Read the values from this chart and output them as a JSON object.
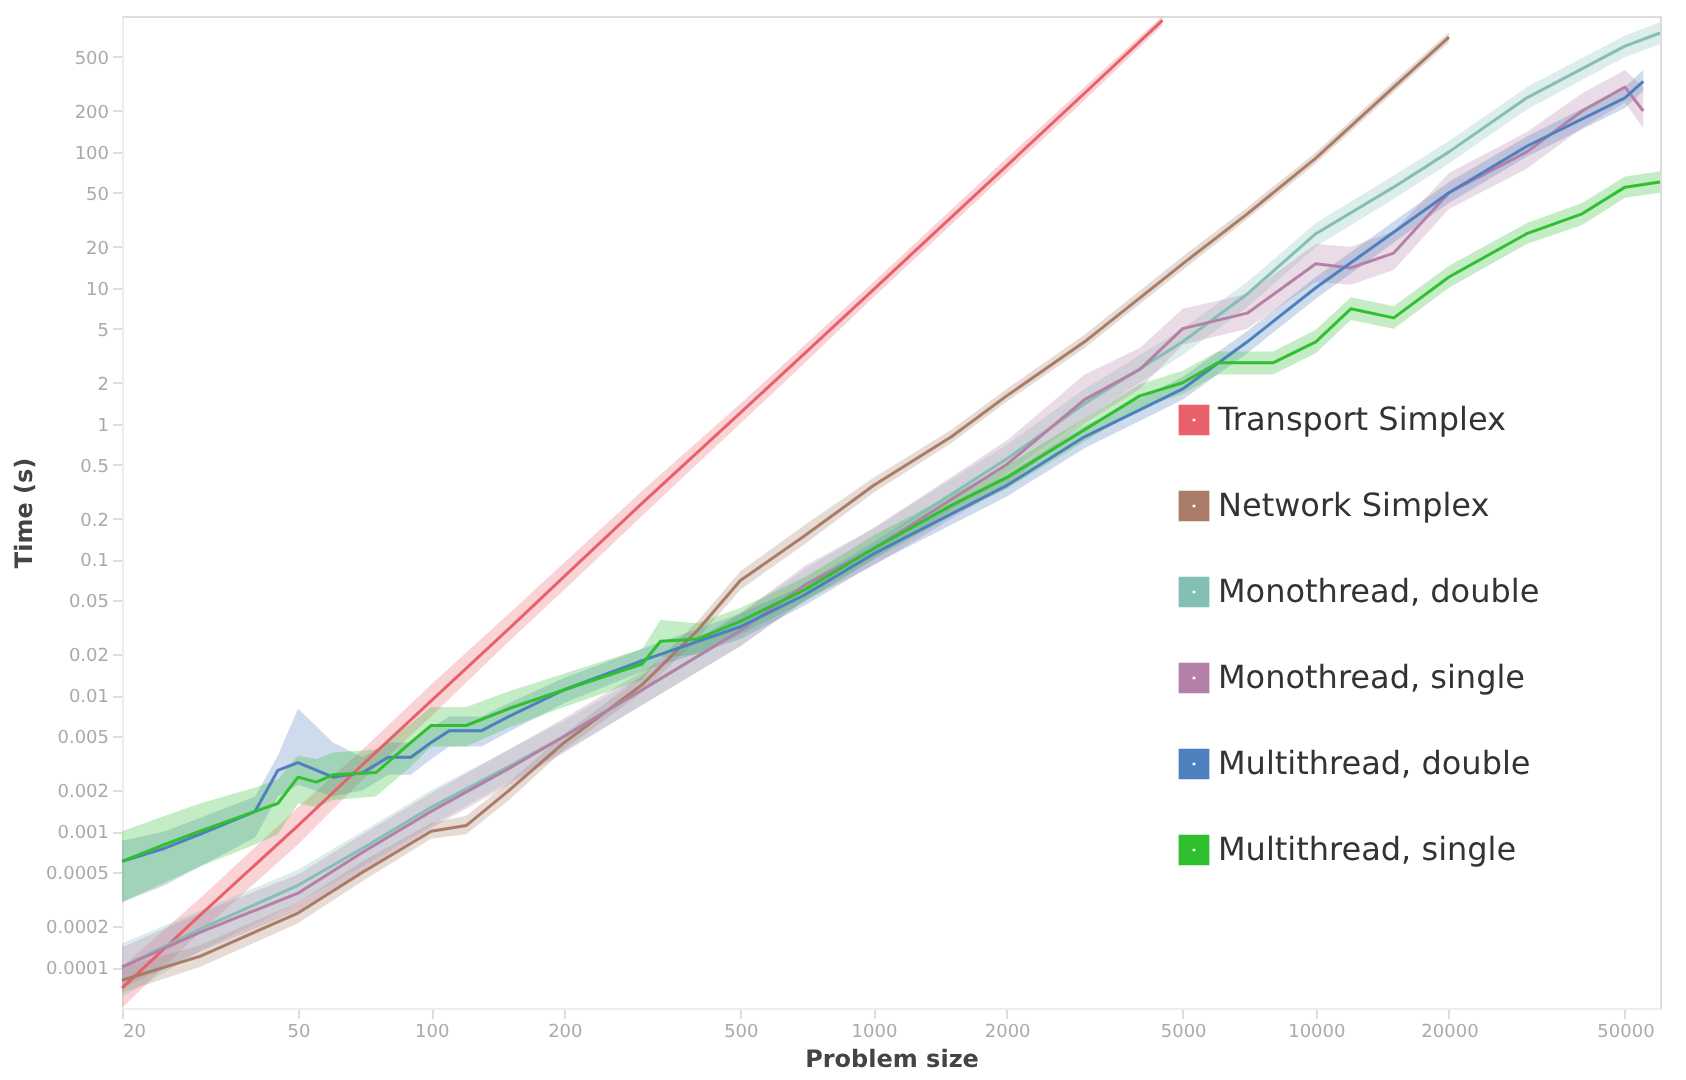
{
  "chart_data": {
    "type": "line",
    "xlabel": "Problem size",
    "ylabel": "Time (s)",
    "log": "xy",
    "grid": false,
    "legend": "bottom right",
    "marker": "none",
    "line_style": "solid",
    "xlim": [
      20,
      60000
    ],
    "xticks": [
      20,
      50,
      100,
      200,
      500,
      1000,
      2000,
      5000,
      10000,
      20000,
      50000
    ],
    "ylim": [
      5e-05,
      1000
    ],
    "yticks": [
      0.0001,
      0.0002,
      0.0005,
      0.001,
      0.002,
      0.005,
      0.01,
      0.02,
      0.05,
      0.1,
      0.2,
      0.5,
      1,
      2,
      5,
      10,
      20,
      50,
      100,
      200,
      500
    ],
    "series": [
      {
        "name": "Transport Simplex",
        "color": "#e8606a",
        "x": [
          20,
          30,
          50,
          70,
          100,
          150,
          200,
          300,
          500,
          700,
          1000,
          2000,
          3000,
          4500
        ],
        "values": [
          7e-05,
          0.00024,
          0.0011,
          0.0031,
          0.0091,
          0.031,
          0.075,
          0.26,
          1.2,
          3.3,
          9.7,
          79,
          270,
          930
        ],
        "lower": [
          5e-05,
          0.00018,
          0.0008,
          0.0024,
          0.007,
          0.025,
          0.06,
          0.21,
          1,
          2.8,
          8.5,
          70,
          240,
          850
        ],
        "upper": [
          0.0001,
          0.00032,
          0.0015,
          0.004,
          0.012,
          0.04,
          0.095,
          0.32,
          1.4,
          3.8,
          11,
          90,
          300,
          1000
        ]
      },
      {
        "name": "Network Simplex",
        "color": "#a97c67",
        "x": [
          20,
          30,
          50,
          70,
          100,
          120,
          150,
          200,
          300,
          400,
          500,
          700,
          1000,
          1500,
          2000,
          3000,
          5000,
          7000,
          10000,
          15000,
          20000
        ],
        "values": [
          8e-05,
          0.00012,
          0.00025,
          0.0005,
          0.001,
          0.0011,
          0.002,
          0.0045,
          0.012,
          0.03,
          0.07,
          0.15,
          0.35,
          0.8,
          1.6,
          4,
          15,
          35,
          90,
          300,
          700
        ],
        "lower": [
          6.5e-05,
          0.0001,
          0.00021,
          0.00043,
          0.00088,
          0.00095,
          0.0017,
          0.004,
          0.0105,
          0.026,
          0.06,
          0.13,
          0.31,
          0.72,
          1.45,
          3.6,
          13.5,
          32,
          82,
          275,
          640
        ],
        "upper": [
          0.0001,
          0.000145,
          0.0003,
          0.0006,
          0.00115,
          0.0013,
          0.0023,
          0.0052,
          0.014,
          0.035,
          0.082,
          0.18,
          0.4,
          0.9,
          1.8,
          4.5,
          17,
          39,
          99,
          330,
          760
        ]
      },
      {
        "name": "Monothread, double",
        "color": "#84bfb6",
        "x": [
          20,
          30,
          50,
          70,
          100,
          150,
          200,
          300,
          500,
          700,
          1000,
          2000,
          3000,
          5000,
          7000,
          10000,
          15000,
          20000,
          30000,
          50000,
          60000
        ],
        "values": [
          0.0001,
          0.00019,
          0.0004,
          0.00075,
          0.0015,
          0.003,
          0.005,
          0.011,
          0.03,
          0.065,
          0.13,
          0.55,
          1.4,
          4,
          9,
          25,
          55,
          100,
          250,
          600,
          750
        ],
        "lower": [
          6e-05,
          0.00013,
          0.0003,
          0.00055,
          0.0011,
          0.0023,
          0.0039,
          0.0085,
          0.023,
          0.05,
          0.1,
          0.43,
          1.1,
          3.2,
          7.2,
          20,
          45,
          82,
          205,
          500,
          620
        ],
        "upper": [
          0.00015,
          0.00026,
          0.00052,
          0.001,
          0.002,
          0.004,
          0.0065,
          0.014,
          0.04,
          0.085,
          0.17,
          0.7,
          1.8,
          5,
          11,
          30,
          67,
          120,
          300,
          720,
          900
        ]
      },
      {
        "name": "Monothread, single",
        "color": "#b580a8",
        "x": [
          20,
          30,
          50,
          70,
          100,
          150,
          200,
          300,
          500,
          700,
          1000,
          2000,
          3000,
          4000,
          5000,
          7000,
          10000,
          12000,
          15000,
          20000,
          30000,
          40000,
          50000,
          55000
        ],
        "values": [
          0.0001,
          0.00018,
          0.00035,
          0.0007,
          0.0014,
          0.0029,
          0.005,
          0.011,
          0.03,
          0.065,
          0.12,
          0.5,
          1.5,
          2.5,
          5,
          6.5,
          15,
          14,
          18,
          50,
          100,
          200,
          300,
          200
        ],
        "lower": [
          7e-05,
          0.00013,
          0.00026,
          0.00052,
          0.00105,
          0.0022,
          0.0038,
          0.0085,
          0.023,
          0.05,
          0.09,
          0.35,
          1,
          1.8,
          3.8,
          5,
          11,
          10.5,
          13.5,
          38,
          75,
          150,
          230,
          150
        ],
        "upper": [
          0.00014,
          0.00025,
          0.00048,
          0.00095,
          0.0019,
          0.004,
          0.0068,
          0.015,
          0.04,
          0.09,
          0.17,
          0.75,
          2.3,
          3.6,
          7,
          9,
          21,
          20,
          26,
          70,
          140,
          270,
          400,
          300
        ]
      },
      {
        "name": "Multithread, double",
        "color": "#4e7fbf",
        "x": [
          20,
          25,
          30,
          40,
          45,
          50,
          60,
          70,
          80,
          90,
          100,
          110,
          130,
          150,
          200,
          300,
          500,
          700,
          1000,
          2000,
          3000,
          5000,
          7000,
          10000,
          20000,
          30000,
          50000,
          55000
        ],
        "values": [
          0.0006,
          0.00075,
          0.00095,
          0.0014,
          0.0028,
          0.0032,
          0.0025,
          0.0027,
          0.0035,
          0.0035,
          0.0045,
          0.0055,
          0.0055,
          0.007,
          0.011,
          0.018,
          0.032,
          0.055,
          0.11,
          0.35,
          0.8,
          1.8,
          4,
          10,
          50,
          110,
          250,
          330
        ],
        "lower": [
          0.0003,
          0.0004,
          0.00055,
          0.0009,
          0.0018,
          0.0022,
          0.0018,
          0.002,
          0.0026,
          0.0026,
          0.0034,
          0.0042,
          0.0042,
          0.0054,
          0.0088,
          0.015,
          0.026,
          0.046,
          0.092,
          0.29,
          0.66,
          1.5,
          3.3,
          8.3,
          42,
          92,
          210,
          280
        ],
        "upper": [
          0.00085,
          0.001,
          0.00125,
          0.0018,
          0.0036,
          0.008,
          0.0045,
          0.0035,
          0.0045,
          0.0045,
          0.0058,
          0.007,
          0.007,
          0.0088,
          0.0135,
          0.022,
          0.04,
          0.065,
          0.13,
          0.42,
          0.96,
          2.2,
          4.8,
          12,
          60,
          130,
          300,
          400
        ]
      },
      {
        "name": "Multithread, single",
        "color": "#2fbf2f",
        "x": [
          20,
          25,
          30,
          40,
          45,
          50,
          55,
          60,
          75,
          90,
          100,
          120,
          150,
          200,
          300,
          330,
          400,
          500,
          700,
          1000,
          1500,
          2000,
          3000,
          4000,
          5000,
          6000,
          8000,
          10000,
          12000,
          15000,
          20000,
          30000,
          40000,
          50000,
          60000
        ],
        "values": [
          0.0006,
          0.0008,
          0.001,
          0.0014,
          0.0016,
          0.0025,
          0.0023,
          0.0026,
          0.0027,
          0.0045,
          0.006,
          0.006,
          0.008,
          0.011,
          0.017,
          0.025,
          0.026,
          0.035,
          0.06,
          0.12,
          0.25,
          0.4,
          0.9,
          1.6,
          2,
          2.8,
          2.8,
          4,
          7,
          6,
          12,
          25,
          35,
          55,
          60
        ],
        "lower": [
          0.0003,
          0.00042,
          0.00055,
          0.0008,
          0.00095,
          0.0016,
          0.0015,
          0.0017,
          0.0018,
          0.003,
          0.0042,
          0.0042,
          0.0058,
          0.0082,
          0.013,
          0.019,
          0.02,
          0.028,
          0.049,
          0.1,
          0.21,
          0.33,
          0.74,
          1.3,
          1.65,
          2.3,
          2.3,
          3.3,
          5.8,
          5,
          10,
          21,
          29,
          46,
          50
        ],
        "upper": [
          0.001,
          0.0013,
          0.0016,
          0.0021,
          0.0024,
          0.0036,
          0.0034,
          0.0038,
          0.004,
          0.0062,
          0.0082,
          0.0082,
          0.0107,
          0.0145,
          0.022,
          0.036,
          0.034,
          0.044,
          0.074,
          0.15,
          0.3,
          0.49,
          1.1,
          1.95,
          2.45,
          3.4,
          3.4,
          4.9,
          8.5,
          7.3,
          14.5,
          30,
          42,
          66,
          72
        ]
      }
    ]
  }
}
